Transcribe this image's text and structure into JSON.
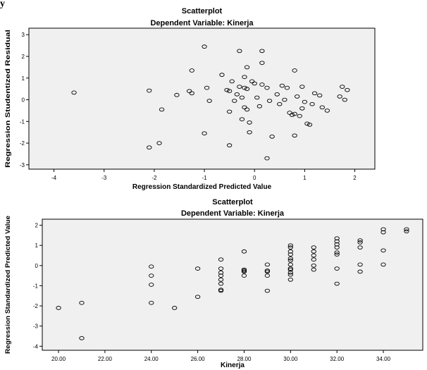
{
  "corner_mark": "y",
  "chart_data": [
    {
      "type": "scatter",
      "title": "Scatterplot",
      "subtitle": "Dependent Variable: Kinerja",
      "xlabel": "Regression Standardized Predicted Value",
      "ylabel": "Regression Studentized Residual",
      "xlim": [
        -4.5,
        2.4
      ],
      "ylim": [
        -3.2,
        3.3
      ],
      "xticks": [
        -4,
        -3,
        -2,
        -1,
        0,
        1,
        2
      ],
      "xtick_labels": [
        "-4",
        "-3",
        "-2",
        "-1",
        "0",
        "1",
        "2"
      ],
      "yticks": [
        -3,
        -2,
        -1,
        0,
        1,
        2,
        3
      ],
      "ytick_labels": [
        "-3",
        "-2",
        "-1",
        "0",
        "1",
        "2",
        "3"
      ],
      "background": "#f0f0f0",
      "marker_color": "#000000",
      "points": [
        [
          -3.6,
          0.33
        ],
        [
          -2.1,
          0.42
        ],
        [
          -2.1,
          -2.2
        ],
        [
          -1.85,
          -0.45
        ],
        [
          -1.9,
          -2.0
        ],
        [
          -1.55,
          0.22
        ],
        [
          -1.3,
          0.4
        ],
        [
          -1.25,
          0.3
        ],
        [
          -1.25,
          1.35
        ],
        [
          -1.0,
          2.45
        ],
        [
          -1.0,
          -1.55
        ],
        [
          -0.95,
          0.55
        ],
        [
          -0.9,
          -0.05
        ],
        [
          -0.65,
          1.15
        ],
        [
          -0.55,
          0.45
        ],
        [
          -0.5,
          0.4
        ],
        [
          -0.5,
          -0.55
        ],
        [
          -0.5,
          -2.1
        ],
        [
          -0.45,
          0.85
        ],
        [
          -0.4,
          -0.05
        ],
        [
          -0.35,
          0.25
        ],
        [
          -0.3,
          2.25
        ],
        [
          -0.3,
          0.6
        ],
        [
          -0.25,
          -0.9
        ],
        [
          -0.25,
          0.1
        ],
        [
          -0.2,
          -0.35
        ],
        [
          -0.2,
          1.05
        ],
        [
          -0.2,
          0.55
        ],
        [
          -0.15,
          0.5
        ],
        [
          -0.15,
          -0.45
        ],
        [
          -0.1,
          -1.5
        ],
        [
          -0.1,
          -1.05
        ],
        [
          -0.15,
          1.5
        ],
        [
          -0.05,
          0.85
        ],
        [
          0.0,
          0.75
        ],
        [
          0.05,
          0.1
        ],
        [
          0.1,
          -0.3
        ],
        [
          0.15,
          1.7
        ],
        [
          0.15,
          2.25
        ],
        [
          0.15,
          0.7
        ],
        [
          0.25,
          0.55
        ],
        [
          0.3,
          -0.05
        ],
        [
          0.35,
          -1.7
        ],
        [
          0.45,
          0.25
        ],
        [
          0.5,
          -0.2
        ],
        [
          0.55,
          0.65
        ],
        [
          0.6,
          0.0
        ],
        [
          0.65,
          0.55
        ],
        [
          0.7,
          -0.6
        ],
        [
          0.75,
          -0.7
        ],
        [
          0.8,
          -0.65
        ],
        [
          0.8,
          1.35
        ],
        [
          0.8,
          -1.65
        ],
        [
          0.85,
          0.15
        ],
        [
          0.9,
          -0.75
        ],
        [
          0.95,
          0.6
        ],
        [
          0.95,
          -0.4
        ],
        [
          1.0,
          -0.1
        ],
        [
          1.05,
          -1.1
        ],
        [
          1.1,
          -1.15
        ],
        [
          1.15,
          -0.2
        ],
        [
          1.2,
          0.3
        ],
        [
          1.3,
          0.2
        ],
        [
          1.35,
          -0.35
        ],
        [
          1.45,
          -0.5
        ],
        [
          1.7,
          0.15
        ],
        [
          1.75,
          0.6
        ],
        [
          1.8,
          0.0
        ],
        [
          1.85,
          0.45
        ],
        [
          0.25,
          -2.7
        ]
      ]
    },
    {
      "type": "scatter",
      "title": "Scatterplot",
      "subtitle": "Dependent Variable: Kinerja",
      "xlabel": "Kinerja",
      "ylabel": "Regression Standardized Predicted Value",
      "xlim": [
        19.3,
        35.7
      ],
      "ylim": [
        -4.2,
        2.3
      ],
      "xticks": [
        20,
        22,
        24,
        26,
        28,
        30,
        32,
        34
      ],
      "xtick_labels": [
        "20.00",
        "22.00",
        "24.00",
        "26.00",
        "28.00",
        "30.00",
        "32.00",
        "34.00"
      ],
      "yticks": [
        -4,
        -3,
        -2,
        -1,
        0,
        1,
        2
      ],
      "ytick_labels": [
        "-4",
        "-3",
        "-2",
        "-1",
        "0",
        "1",
        "2"
      ],
      "background": "#f0f0f0",
      "marker_color": "#000000",
      "points": [
        [
          20,
          -2.1
        ],
        [
          21,
          -1.85
        ],
        [
          21,
          -3.6
        ],
        [
          24,
          -0.05
        ],
        [
          24,
          -0.5
        ],
        [
          24,
          -0.95
        ],
        [
          24,
          -1.85
        ],
        [
          25,
          -2.1
        ],
        [
          26,
          -0.15
        ],
        [
          26,
          -1.55
        ],
        [
          27,
          0.3
        ],
        [
          27,
          -0.15
        ],
        [
          27,
          -0.35
        ],
        [
          27,
          -0.5
        ],
        [
          27,
          -0.7
        ],
        [
          27,
          -0.9
        ],
        [
          27,
          -1.2
        ],
        [
          27,
          -1.25
        ],
        [
          28,
          0.7
        ],
        [
          28,
          -0.2
        ],
        [
          28,
          -0.25
        ],
        [
          28,
          -0.3
        ],
        [
          28,
          -0.5
        ],
        [
          29,
          0.05
        ],
        [
          29,
          -0.25
        ],
        [
          29,
          -0.3
        ],
        [
          29,
          -0.5
        ],
        [
          29,
          -1.25
        ],
        [
          30,
          1.0
        ],
        [
          30,
          0.9
        ],
        [
          30,
          0.7
        ],
        [
          30,
          0.55
        ],
        [
          30,
          0.35
        ],
        [
          30,
          0.25
        ],
        [
          30,
          0.05
        ],
        [
          30,
          -0.15
        ],
        [
          30,
          -0.2
        ],
        [
          30,
          -0.35
        ],
        [
          30,
          -0.45
        ],
        [
          30,
          -0.7
        ],
        [
          31,
          0.9
        ],
        [
          31,
          0.7
        ],
        [
          31,
          0.5
        ],
        [
          31,
          0.3
        ],
        [
          31,
          0.0
        ],
        [
          31,
          -0.2
        ],
        [
          32,
          1.35
        ],
        [
          32,
          1.2
        ],
        [
          32,
          1.05
        ],
        [
          32,
          0.9
        ],
        [
          32,
          0.65
        ],
        [
          32,
          0.55
        ],
        [
          32,
          -0.15
        ],
        [
          32,
          -0.9
        ],
        [
          33,
          1.25
        ],
        [
          33,
          1.15
        ],
        [
          33,
          0.9
        ],
        [
          33,
          0.05
        ],
        [
          33,
          -0.3
        ],
        [
          34,
          1.8
        ],
        [
          34,
          1.65
        ],
        [
          34,
          0.75
        ],
        [
          34,
          0.05
        ],
        [
          35,
          1.8
        ],
        [
          35,
          1.7
        ]
      ]
    }
  ]
}
